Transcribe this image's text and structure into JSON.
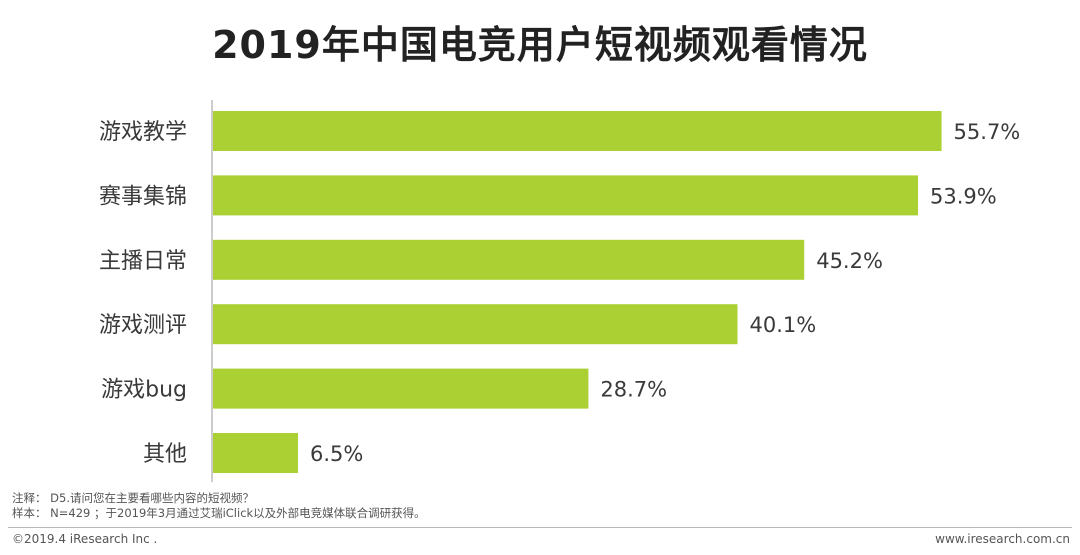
{
  "chart_data": {
    "type": "bar",
    "orientation": "horizontal",
    "title": "2019年中国电竞用户短视频观看情况",
    "categories": [
      "游戏教学",
      "赛事集锦",
      "主播日常",
      "游戏测评",
      "游戏bug",
      "其他"
    ],
    "values": [
      55.7,
      53.9,
      45.2,
      40.1,
      28.7,
      6.5
    ],
    "labels": [
      "55.7%",
      "53.9%",
      "45.2%",
      "40.1%",
      "28.7%",
      "6.5%"
    ],
    "xlim": [
      0,
      56
    ],
    "xlabel": "",
    "ylabel": "",
    "bar_color": "#abd033",
    "grid": false
  },
  "notes": {
    "note_line": "注释： D5.请问您在主要看哪些内容的短视频？",
    "sample_line": "样本： N=429 ；于2019年3月通过艾瑞iClick以及外部电竞媒体联合调研获得。"
  },
  "footer": {
    "copyright": "©2019.4 iResearch Inc .",
    "website": "www.iresearch.com.cn"
  }
}
